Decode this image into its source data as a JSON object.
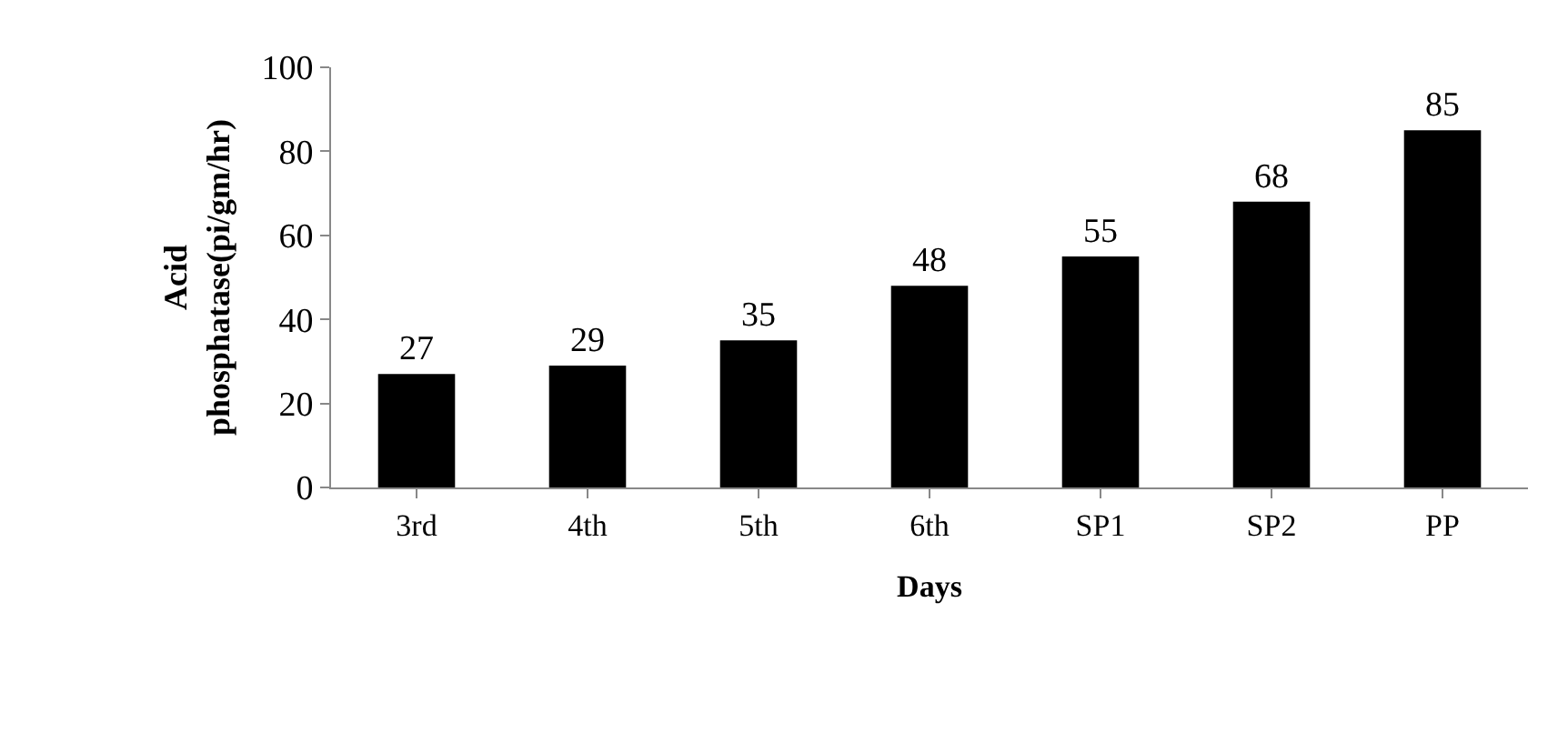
{
  "chart_data": {
    "type": "bar",
    "categories": [
      "3rd",
      "4th",
      "5th",
      "6th",
      "SP1",
      "SP2",
      "PP"
    ],
    "values": [
      27,
      29,
      35,
      48,
      55,
      68,
      85
    ],
    "color": "#000000",
    "xlabel": "Days",
    "ylabel": "Acid\nphosphatase(pi/gm/hr)",
    "ylim": [
      0,
      100
    ],
    "yticks": [
      0,
      20,
      40,
      60,
      80,
      100
    ],
    "data_labels": true,
    "grid": false,
    "legend": false
  }
}
